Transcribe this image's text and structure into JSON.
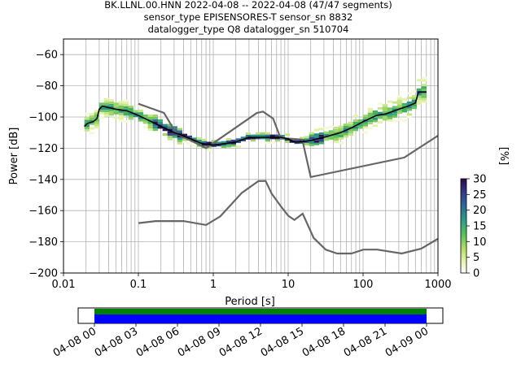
{
  "chart_data": {
    "type": "heatmap",
    "title_lines": [
      "BK.LLNL.00.HNN   2022-04-08 -- 2022-04-08  (47/47 segments)",
      "sensor_type EPISENSORES-T sensor_sn 8832",
      "datalogger_type Q8 datalogger_sn 510704"
    ],
    "xlabel": "Period [s]",
    "ylabel": "Power [dB]",
    "x_scale": "log",
    "xlim": [
      0.01,
      1000
    ],
    "ylim": [
      -200,
      -50
    ],
    "x_ticks": [
      0.01,
      0.1,
      1,
      10,
      100,
      1000
    ],
    "x_tick_labels": [
      "0.01",
      "0.1",
      "1",
      "10",
      "100",
      "1000"
    ],
    "y_ticks": [
      -200,
      -180,
      -160,
      -140,
      -120,
      -100,
      -80,
      -60
    ],
    "y_tick_labels": [
      "−200",
      "−180",
      "−160",
      "−140",
      "−120",
      "−100",
      "−80",
      "−60"
    ],
    "grid": true,
    "colorbar": {
      "label": "[%]",
      "range": [
        0,
        30
      ],
      "ticks": [
        0,
        5,
        10,
        15,
        20,
        25,
        30
      ],
      "tick_labels": [
        "0",
        "5",
        "10",
        "15",
        "20",
        "25",
        "30"
      ],
      "colormap": "pqlx"
    },
    "series": [
      {
        "role": "mode",
        "color": "#000000",
        "points": [
          [
            0.019,
            -106
          ],
          [
            0.021,
            -104
          ],
          [
            0.025,
            -103
          ],
          [
            0.028,
            -101
          ],
          [
            0.03,
            -95
          ],
          [
            0.033,
            -93
          ],
          [
            0.04,
            -94
          ],
          [
            0.05,
            -95
          ],
          [
            0.07,
            -96
          ],
          [
            0.1,
            -99
          ],
          [
            0.15,
            -103
          ],
          [
            0.2,
            -106
          ],
          [
            0.3,
            -110
          ],
          [
            0.5,
            -114
          ],
          [
            0.7,
            -117
          ],
          [
            1,
            -118
          ],
          [
            1.5,
            -117
          ],
          [
            2,
            -116
          ],
          [
            3,
            -113
          ],
          [
            5,
            -113
          ],
          [
            8,
            -113
          ],
          [
            10,
            -114
          ],
          [
            12,
            -116
          ],
          [
            15,
            -116
          ],
          [
            20,
            -115
          ],
          [
            30,
            -113
          ],
          [
            50,
            -110
          ],
          [
            70,
            -107
          ],
          [
            100,
            -103
          ],
          [
            150,
            -99
          ],
          [
            200,
            -98
          ],
          [
            300,
            -95
          ],
          [
            400,
            -93
          ],
          [
            500,
            -91
          ],
          [
            550,
            -84
          ],
          [
            700,
            -84
          ]
        ]
      },
      {
        "role": "high-noise-model",
        "color": "#666666",
        "points": [
          [
            0.1,
            -91.5
          ],
          [
            0.22,
            -97.4
          ],
          [
            0.32,
            -110.5
          ],
          [
            0.8,
            -120
          ],
          [
            3.8,
            -97.5
          ],
          [
            4.6,
            -96.5
          ],
          [
            6.3,
            -101
          ],
          [
            7.9,
            -113.5
          ],
          [
            15.4,
            -114.5
          ],
          [
            20,
            -138.5
          ],
          [
            354.8,
            -126
          ],
          [
            1000,
            -112
          ]
        ]
      },
      {
        "role": "low-noise-model",
        "color": "#666666",
        "points": [
          [
            0.1,
            -168
          ],
          [
            0.17,
            -166.7
          ],
          [
            0.4,
            -166.7
          ],
          [
            0.8,
            -169.2
          ],
          [
            1.24,
            -163.7
          ],
          [
            2.41,
            -148.6
          ],
          [
            4.01,
            -141.1
          ],
          [
            5,
            -141
          ],
          [
            6,
            -149
          ],
          [
            7.9,
            -157
          ],
          [
            10,
            -163.3
          ],
          [
            12.1,
            -166
          ],
          [
            15.6,
            -162
          ],
          [
            21.9,
            -177.5
          ],
          [
            31.6,
            -185
          ],
          [
            45,
            -187.5
          ],
          [
            70,
            -187.5
          ],
          [
            101,
            -185
          ],
          [
            154,
            -185
          ],
          [
            328,
            -187.5
          ],
          [
            600,
            -184.4
          ],
          [
            1000,
            -178
          ]
        ]
      }
    ]
  },
  "time_axis": {
    "tick_labels": [
      "04-08 00",
      "04-08 03",
      "04-08 06",
      "04-08 09",
      "04-08 12",
      "04-08 15",
      "04-08 18",
      "04-08 21",
      "04-09 00"
    ],
    "data_coverage_color": "#008000",
    "psd_coverage_color": "#0000ff"
  }
}
